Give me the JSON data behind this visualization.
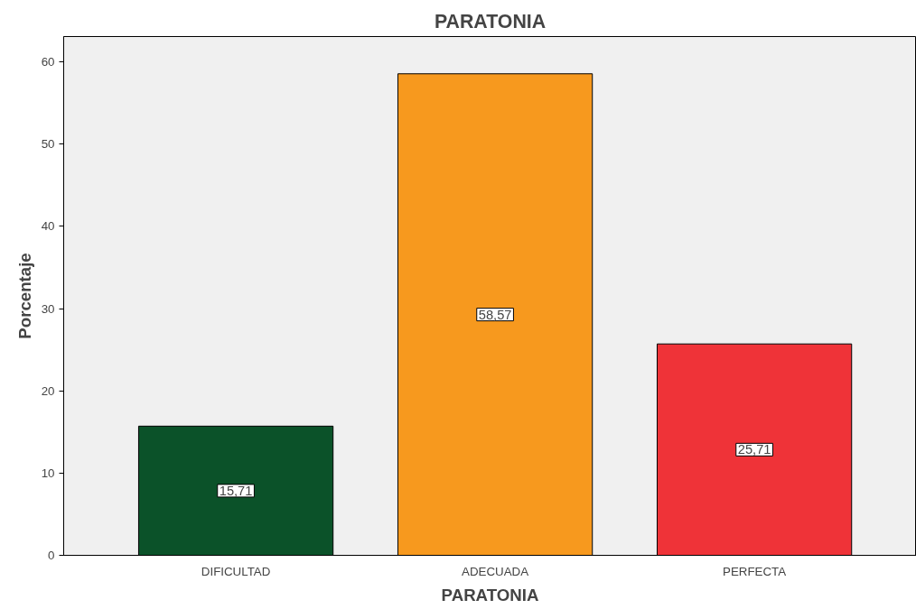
{
  "chart_data": {
    "type": "bar",
    "title": "PARATONIA",
    "xlabel": "PARATONIA",
    "ylabel": "Porcentaje",
    "categories": [
      "DIFICULTAD",
      "ADECUADA",
      "PERFECTA"
    ],
    "values": [
      15.71,
      58.57,
      25.71
    ],
    "value_labels": [
      "15,71",
      "58,57",
      "25,71"
    ],
    "colors": [
      "#0b5229",
      "#f7991e",
      "#ef3338"
    ],
    "ylim": [
      0,
      63.1
    ],
    "yticks": [
      0,
      10,
      20,
      30,
      40,
      50,
      60
    ],
    "grid": false
  }
}
